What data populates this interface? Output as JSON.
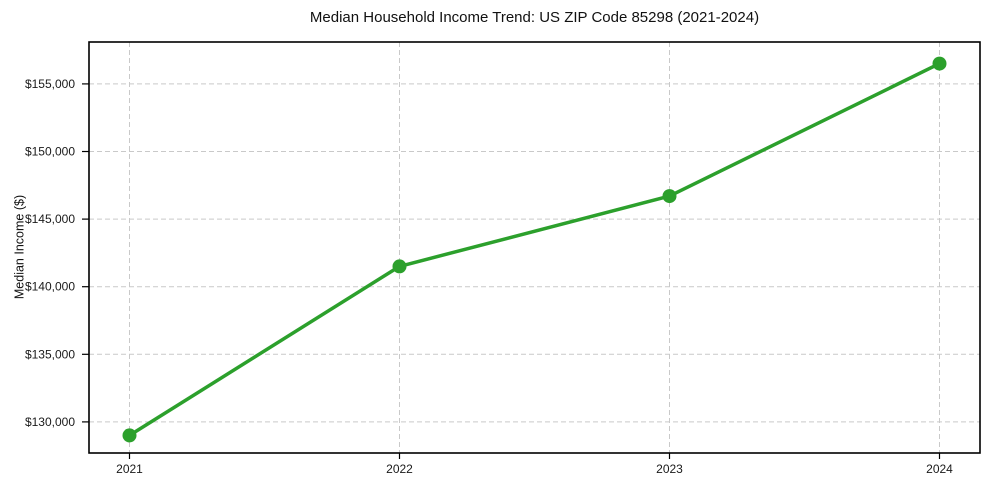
{
  "chart_data": {
    "type": "line",
    "title": "Median Household Income Trend: US ZIP Code 85298 (2021-2024)",
    "xlabel": "",
    "ylabel": "Median Income ($)",
    "x": [
      2021,
      2022,
      2023,
      2024
    ],
    "values": [
      129000,
      141500,
      146700,
      156500
    ],
    "xticks": [
      2021,
      2022,
      2023,
      2024
    ],
    "x_tick_labels": [
      "2021",
      "2022",
      "2023",
      "2024"
    ],
    "yticks": [
      130000,
      135000,
      140000,
      145000,
      150000,
      155000
    ],
    "y_tick_labels": [
      "$130,000",
      "$135,000",
      "$140,000",
      "$145,000",
      "$150,000",
      "$155,000"
    ],
    "xlim": [
      2020.85,
      2024.15
    ],
    "ylim": [
      127700,
      158100
    ],
    "grid": true,
    "grid_style": "dashed",
    "legend": "none",
    "line_color": "#2ca02c",
    "marker": "circle",
    "colors": {
      "grid": "#c9c9c9",
      "spine": "#000000",
      "tick_text": "#1a1a1a",
      "background": "#ffffff"
    }
  }
}
